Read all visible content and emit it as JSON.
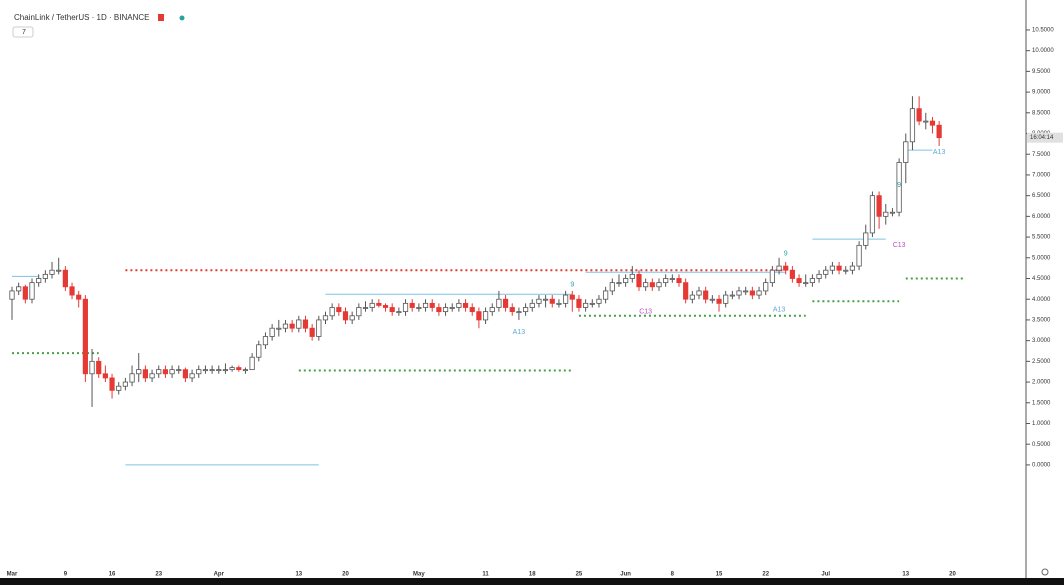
{
  "chart_data": {
    "type": "candlestick",
    "title": "ChainLink / TetherUS · 1D · BINANCE",
    "indicator_badge": "7",
    "countdown": "16:04:14",
    "up_color": "#ffffff",
    "up_border": "#555555",
    "down_color": "#e53935",
    "ylim": [
      -2.73,
      11.03
    ],
    "yticks": [
      {
        "value": 0,
        "label": "0.0000"
      },
      {
        "value": 0.5,
        "label": "0.5000"
      },
      {
        "value": 1,
        "label": "1.0000"
      },
      {
        "value": 1.5,
        "label": "1.5000"
      },
      {
        "value": 2,
        "label": "2.0000"
      },
      {
        "value": 2.5,
        "label": "2.5000"
      },
      {
        "value": 3,
        "label": "3.0000"
      },
      {
        "value": 3.5,
        "label": "3.5000"
      },
      {
        "value": 4,
        "label": "4.0000"
      },
      {
        "value": 4.5,
        "label": "4.5000"
      },
      {
        "value": 5,
        "label": "5.0000"
      },
      {
        "value": 5.5,
        "label": "5.5000"
      },
      {
        "value": 6,
        "label": "6.0000"
      },
      {
        "value": 6.5,
        "label": "6.5000"
      },
      {
        "value": 7,
        "label": "7.0000"
      },
      {
        "value": 7.5,
        "label": "7.5000"
      },
      {
        "value": 8,
        "label": "8.0000"
      },
      {
        "value": 8.5,
        "label": "8.5000"
      },
      {
        "value": 9,
        "label": "9.0000"
      },
      {
        "value": 9.5,
        "label": "9.5000"
      },
      {
        "value": 10,
        "label": "10.0000"
      },
      {
        "value": 10.5,
        "label": "10.5000"
      }
    ],
    "xticks": [
      {
        "value": 0,
        "label": "Mar"
      },
      {
        "value": 8,
        "label": "9"
      },
      {
        "value": 15,
        "label": "16"
      },
      {
        "value": 22,
        "label": "23"
      },
      {
        "value": 31,
        "label": "Apr"
      },
      {
        "value": 43,
        "label": "13"
      },
      {
        "value": 50,
        "label": "20"
      },
      {
        "value": 61,
        "label": "May"
      },
      {
        "value": 71,
        "label": "11"
      },
      {
        "value": 78,
        "label": "18"
      },
      {
        "value": 85,
        "label": "25"
      },
      {
        "value": 92,
        "label": "Jun"
      },
      {
        "value": 99,
        "label": "8"
      },
      {
        "value": 106,
        "label": "15"
      },
      {
        "value": 113,
        "label": "22"
      },
      {
        "value": 122,
        "label": "Jul"
      },
      {
        "value": 134,
        "label": "13"
      },
      {
        "value": 141,
        "label": "20"
      }
    ],
    "ohlc": [
      [
        4.0,
        4.3,
        3.5,
        4.2
      ],
      [
        4.2,
        4.4,
        4.1,
        4.3
      ],
      [
        4.3,
        4.35,
        3.9,
        4.0
      ],
      [
        4.0,
        4.5,
        3.9,
        4.4
      ],
      [
        4.4,
        4.6,
        4.3,
        4.5
      ],
      [
        4.5,
        4.7,
        4.4,
        4.6
      ],
      [
        4.6,
        4.9,
        4.5,
        4.7
      ],
      [
        4.7,
        5.0,
        4.6,
        4.7
      ],
      [
        4.7,
        4.8,
        4.2,
        4.3
      ],
      [
        4.3,
        4.4,
        4.0,
        4.1
      ],
      [
        4.1,
        4.2,
        3.8,
        4.0
      ],
      [
        4.0,
        4.1,
        2.0,
        2.2
      ],
      [
        2.2,
        2.8,
        1.4,
        2.5
      ],
      [
        2.5,
        2.6,
        2.1,
        2.2
      ],
      [
        2.2,
        2.4,
        2.0,
        2.1
      ],
      [
        2.1,
        2.2,
        1.6,
        1.8
      ],
      [
        1.8,
        2.0,
        1.7,
        1.9
      ],
      [
        1.9,
        2.1,
        1.8,
        2.0
      ],
      [
        2.0,
        2.4,
        1.9,
        2.2
      ],
      [
        2.2,
        2.7,
        2.0,
        2.3
      ],
      [
        2.3,
        2.4,
        2.0,
        2.1
      ],
      [
        2.1,
        2.3,
        2.0,
        2.2
      ],
      [
        2.2,
        2.4,
        2.1,
        2.3
      ],
      [
        2.3,
        2.4,
        2.1,
        2.2
      ],
      [
        2.2,
        2.4,
        2.1,
        2.3
      ],
      [
        2.3,
        2.4,
        2.2,
        2.3
      ],
      [
        2.3,
        2.35,
        2.0,
        2.1
      ],
      [
        2.1,
        2.3,
        2.0,
        2.2
      ],
      [
        2.2,
        2.4,
        2.1,
        2.3
      ],
      [
        2.3,
        2.4,
        2.2,
        2.3
      ],
      [
        2.3,
        2.4,
        2.2,
        2.3
      ],
      [
        2.3,
        2.4,
        2.2,
        2.3
      ],
      [
        2.3,
        2.45,
        2.2,
        2.3
      ],
      [
        2.3,
        2.4,
        2.25,
        2.35
      ],
      [
        2.35,
        2.4,
        2.25,
        2.3
      ],
      [
        2.3,
        2.35,
        2.2,
        2.3
      ],
      [
        2.3,
        2.7,
        2.3,
        2.6
      ],
      [
        2.6,
        3.0,
        2.5,
        2.9
      ],
      [
        2.9,
        3.2,
        2.8,
        3.1
      ],
      [
        3.1,
        3.4,
        3.0,
        3.3
      ],
      [
        3.3,
        3.5,
        3.1,
        3.3
      ],
      [
        3.3,
        3.5,
        3.2,
        3.4
      ],
      [
        3.4,
        3.5,
        3.2,
        3.3
      ],
      [
        3.3,
        3.6,
        3.2,
        3.5
      ],
      [
        3.5,
        3.6,
        3.2,
        3.3
      ],
      [
        3.3,
        3.4,
        3.0,
        3.1
      ],
      [
        3.1,
        3.6,
        3.0,
        3.5
      ],
      [
        3.5,
        3.7,
        3.4,
        3.6
      ],
      [
        3.6,
        3.9,
        3.5,
        3.8
      ],
      [
        3.8,
        3.9,
        3.6,
        3.7
      ],
      [
        3.7,
        3.8,
        3.4,
        3.5
      ],
      [
        3.5,
        3.7,
        3.4,
        3.6
      ],
      [
        3.6,
        3.9,
        3.5,
        3.8
      ],
      [
        3.8,
        3.95,
        3.7,
        3.8
      ],
      [
        3.8,
        4.0,
        3.7,
        3.9
      ],
      [
        3.9,
        4.0,
        3.8,
        3.85
      ],
      [
        3.85,
        3.9,
        3.7,
        3.8
      ],
      [
        3.8,
        3.9,
        3.6,
        3.7
      ],
      [
        3.7,
        3.8,
        3.6,
        3.7
      ],
      [
        3.7,
        4.0,
        3.6,
        3.9
      ],
      [
        3.9,
        4.0,
        3.7,
        3.8
      ],
      [
        3.8,
        3.9,
        3.7,
        3.8
      ],
      [
        3.8,
        4.0,
        3.7,
        3.9
      ],
      [
        3.9,
        4.0,
        3.7,
        3.8
      ],
      [
        3.8,
        3.9,
        3.6,
        3.7
      ],
      [
        3.7,
        3.9,
        3.6,
        3.8
      ],
      [
        3.8,
        3.9,
        3.7,
        3.8
      ],
      [
        3.8,
        4.0,
        3.7,
        3.9
      ],
      [
        3.9,
        4.0,
        3.7,
        3.8
      ],
      [
        3.8,
        3.9,
        3.6,
        3.7
      ],
      [
        3.7,
        3.8,
        3.3,
        3.5
      ],
      [
        3.5,
        3.8,
        3.4,
        3.7
      ],
      [
        3.7,
        3.9,
        3.6,
        3.8
      ],
      [
        3.8,
        4.2,
        3.7,
        4.0
      ],
      [
        4.0,
        4.1,
        3.7,
        3.8
      ],
      [
        3.8,
        3.9,
        3.6,
        3.7
      ],
      [
        3.7,
        3.8,
        3.5,
        3.7
      ],
      [
        3.7,
        3.9,
        3.6,
        3.8
      ],
      [
        3.8,
        4.0,
        3.7,
        3.9
      ],
      [
        3.9,
        4.1,
        3.8,
        4.0
      ],
      [
        4.0,
        4.1,
        3.8,
        4.0
      ],
      [
        4.0,
        4.1,
        3.8,
        3.9
      ],
      [
        3.9,
        4.0,
        3.8,
        3.9
      ],
      [
        3.9,
        4.2,
        3.8,
        4.1
      ],
      [
        4.1,
        4.2,
        3.7,
        4.0
      ],
      [
        4.0,
        4.1,
        3.7,
        3.8
      ],
      [
        3.8,
        4.0,
        3.7,
        3.9
      ],
      [
        3.9,
        4.0,
        3.8,
        3.9
      ],
      [
        3.9,
        4.1,
        3.8,
        4.0
      ],
      [
        4.0,
        4.3,
        3.9,
        4.2
      ],
      [
        4.2,
        4.5,
        4.1,
        4.4
      ],
      [
        4.4,
        4.6,
        4.3,
        4.4
      ],
      [
        4.4,
        4.6,
        4.3,
        4.5
      ],
      [
        4.5,
        4.8,
        4.4,
        4.6
      ],
      [
        4.6,
        4.7,
        4.2,
        4.3
      ],
      [
        4.3,
        4.5,
        4.2,
        4.4
      ],
      [
        4.4,
        4.5,
        4.2,
        4.3
      ],
      [
        4.3,
        4.5,
        4.2,
        4.4
      ],
      [
        4.4,
        4.6,
        4.3,
        4.5
      ],
      [
        4.5,
        4.6,
        4.4,
        4.5
      ],
      [
        4.5,
        4.6,
        4.3,
        4.4
      ],
      [
        4.4,
        4.5,
        3.9,
        4.0
      ],
      [
        4.0,
        4.2,
        3.9,
        4.1
      ],
      [
        4.1,
        4.3,
        4.0,
        4.2
      ],
      [
        4.2,
        4.3,
        3.9,
        4.0
      ],
      [
        4.0,
        4.1,
        3.9,
        4.0
      ],
      [
        4.0,
        4.1,
        3.7,
        3.9
      ],
      [
        3.9,
        4.2,
        3.8,
        4.1
      ],
      [
        4.1,
        4.2,
        4.0,
        4.1
      ],
      [
        4.1,
        4.3,
        4.0,
        4.2
      ],
      [
        4.2,
        4.3,
        4.1,
        4.2
      ],
      [
        4.2,
        4.3,
        4.0,
        4.1
      ],
      [
        4.1,
        4.3,
        4.0,
        4.2
      ],
      [
        4.2,
        4.5,
        4.1,
        4.4
      ],
      [
        4.4,
        4.8,
        4.3,
        4.7
      ],
      [
        4.7,
        5.0,
        4.6,
        4.8
      ],
      [
        4.8,
        4.9,
        4.6,
        4.7
      ],
      [
        4.7,
        4.8,
        4.4,
        4.5
      ],
      [
        4.5,
        4.6,
        4.3,
        4.4
      ],
      [
        4.4,
        4.6,
        4.3,
        4.4
      ],
      [
        4.4,
        4.6,
        4.3,
        4.5
      ],
      [
        4.5,
        4.7,
        4.4,
        4.6
      ],
      [
        4.6,
        4.8,
        4.5,
        4.7
      ],
      [
        4.7,
        4.9,
        4.6,
        4.8
      ],
      [
        4.8,
        4.9,
        4.6,
        4.7
      ],
      [
        4.7,
        4.8,
        4.6,
        4.7
      ],
      [
        4.7,
        4.9,
        4.6,
        4.8
      ],
      [
        4.8,
        5.4,
        4.7,
        5.3
      ],
      [
        5.3,
        5.8,
        5.2,
        5.6
      ],
      [
        5.6,
        6.6,
        5.5,
        6.5
      ],
      [
        6.5,
        6.6,
        5.7,
        6.0
      ],
      [
        6.0,
        6.3,
        5.8,
        6.1
      ],
      [
        6.1,
        6.2,
        6.0,
        6.1
      ],
      [
        6.1,
        7.4,
        6.0,
        7.3
      ],
      [
        7.3,
        8.0,
        6.8,
        7.8
      ],
      [
        7.8,
        8.9,
        7.6,
        8.6
      ],
      [
        8.6,
        8.9,
        8.2,
        8.3
      ],
      [
        8.3,
        8.5,
        8.1,
        8.3
      ],
      [
        8.3,
        8.4,
        8.0,
        8.2
      ],
      [
        8.2,
        8.3,
        7.7,
        7.9
      ]
    ],
    "level_colors": {
      "resistance": "#e53935",
      "support": "#43a047",
      "risk": "#7cc3e8"
    },
    "levels": [
      {
        "kind": "resistance",
        "price": 4.7,
        "from": 17,
        "to": 116
      },
      {
        "kind": "support",
        "price": 2.7,
        "from": 0,
        "to": 13
      },
      {
        "kind": "support",
        "price": 2.28,
        "from": 43,
        "to": 84
      },
      {
        "kind": "support",
        "price": 3.6,
        "from": 85,
        "to": 119
      },
      {
        "kind": "support",
        "price": 3.95,
        "from": 120,
        "to": 133
      },
      {
        "kind": "support",
        "price": 4.5,
        "from": 134,
        "to": 143
      },
      {
        "kind": "risk",
        "price": 4.55,
        "from": 0,
        "to": 4
      },
      {
        "kind": "risk",
        "price": 0.0,
        "from": 17,
        "to": 46
      },
      {
        "kind": "risk",
        "price": 4.12,
        "from": 47,
        "to": 84
      },
      {
        "kind": "risk",
        "price": 4.65,
        "from": 86,
        "to": 116
      },
      {
        "kind": "risk",
        "price": 5.45,
        "from": 120,
        "to": 131
      },
      {
        "kind": "risk",
        "price": 7.6,
        "from": 134,
        "to": 138
      }
    ],
    "annotations": [
      {
        "text": "A13",
        "index": 76,
        "price": 3.2,
        "color": "#5ba8d6"
      },
      {
        "text": "9",
        "index": 84,
        "price": 4.35,
        "color": "#26a69a"
      },
      {
        "text": "C13",
        "index": 95,
        "price": 3.7,
        "color": "#c24fc6"
      },
      {
        "text": "A13",
        "index": 115,
        "price": 3.75,
        "color": "#5ba8d6"
      },
      {
        "text": "9",
        "index": 116,
        "price": 5.1,
        "color": "#26a69a"
      },
      {
        "text": "9",
        "index": 133,
        "price": 6.75,
        "color": "#26a69a"
      },
      {
        "text": "C13",
        "index": 133,
        "price": 5.3,
        "color": "#c24fc6"
      },
      {
        "text": "A13",
        "index": 139,
        "price": 7.55,
        "color": "#5ba8d6"
      }
    ]
  }
}
